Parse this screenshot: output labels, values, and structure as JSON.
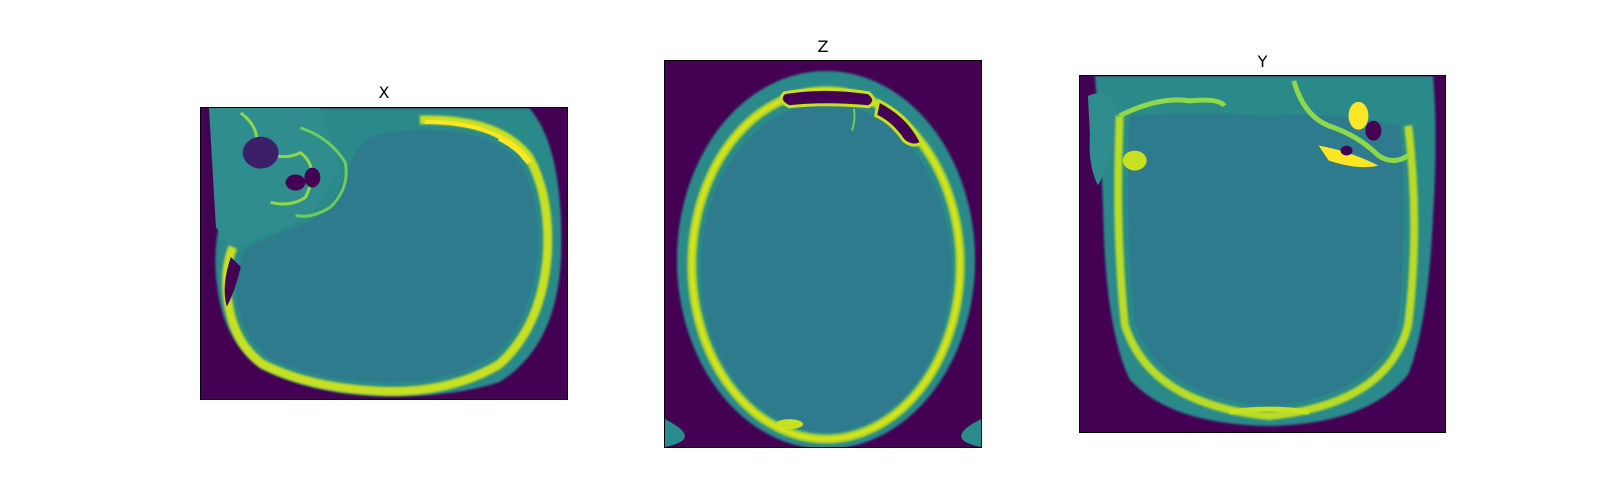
{
  "panels": [
    {
      "title": "X"
    },
    {
      "title": "Z"
    },
    {
      "title": "Y"
    }
  ],
  "colors": {
    "background": "#440154",
    "soft_tissue": "#2f6f8e",
    "brain": "#2d7c8c",
    "skin": "#2b8a8a",
    "bone": "#c7e020",
    "bone_bright": "#fde725",
    "bone_mid": "#6ccd5a"
  }
}
